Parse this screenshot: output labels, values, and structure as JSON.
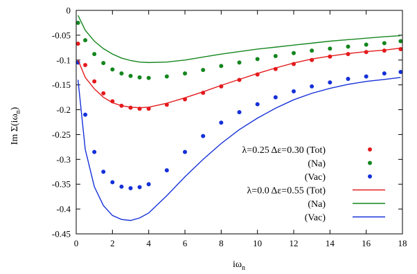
{
  "chart_data": {
    "type": "line",
    "title": "",
    "xlabel": "iω",
    "xlabel_sub": "n",
    "ylabel": "Im Σ(iω",
    "ylabel_sub": "n",
    "ylabel_close": ")",
    "xlim": [
      0,
      18
    ],
    "ylim": [
      -0.45,
      0
    ],
    "xticks": [
      0,
      2,
      4,
      6,
      8,
      10,
      12,
      14,
      16,
      18
    ],
    "yticks": [
      0,
      -0.05,
      -0.1,
      -0.15,
      -0.2,
      -0.25,
      -0.3,
      -0.35,
      -0.4,
      -0.45
    ],
    "ytick_labels": [
      "0",
      "-0.05",
      "-0.1",
      "-0.15",
      "-0.2",
      "-0.25",
      "-0.3",
      "-0.35",
      "-0.4",
      "-0.45"
    ],
    "legend_position": "center-right",
    "x": [
      0.1,
      0.5,
      1,
      1.5,
      2,
      2.5,
      3,
      3.5,
      4,
      5,
      6,
      7,
      8,
      9,
      10,
      11,
      12,
      13,
      14,
      15,
      16,
      17,
      17.9
    ],
    "series": [
      {
        "name": "λ=0.25  Δε=0.30 (Tot)",
        "style": "points",
        "color": "#e41a1c",
        "values": [
          -0.067,
          -0.11,
          -0.143,
          -0.167,
          -0.183,
          -0.192,
          -0.196,
          -0.198,
          -0.198,
          -0.19,
          -0.179,
          -0.166,
          -0.153,
          -0.14,
          -0.129,
          -0.118,
          -0.108,
          -0.1,
          -0.093,
          -0.088,
          -0.084,
          -0.081,
          -0.078
        ]
      },
      {
        "name": "(Na)",
        "style": "points",
        "color": "#14861e",
        "values": [
          -0.025,
          -0.06,
          -0.088,
          -0.106,
          -0.119,
          -0.127,
          -0.132,
          -0.135,
          -0.136,
          -0.133,
          -0.127,
          -0.12,
          -0.112,
          -0.105,
          -0.098,
          -0.092,
          -0.086,
          -0.081,
          -0.077,
          -0.073,
          -0.069,
          -0.066,
          -0.062
        ]
      },
      {
        "name": "(Vac)",
        "style": "points",
        "color": "#1530d8",
        "values": [
          -0.105,
          -0.21,
          -0.285,
          -0.325,
          -0.346,
          -0.355,
          -0.358,
          -0.356,
          -0.35,
          -0.322,
          -0.285,
          -0.253,
          -0.226,
          -0.205,
          -0.189,
          -0.175,
          -0.163,
          -0.153,
          -0.145,
          -0.138,
          -0.133,
          -0.127,
          -0.124
        ]
      },
      {
        "name": "λ=0.0  Δε=0.55 (Tot)",
        "style": "line",
        "color": "#e41a1c",
        "values": [
          -0.1,
          -0.135,
          -0.158,
          -0.175,
          -0.186,
          -0.192,
          -0.195,
          -0.196,
          -0.195,
          -0.187,
          -0.176,
          -0.164,
          -0.151,
          -0.139,
          -0.127,
          -0.116,
          -0.106,
          -0.098,
          -0.092,
          -0.087,
          -0.083,
          -0.08,
          -0.076
        ]
      },
      {
        "name": "(Na)",
        "style": "line",
        "color": "#14861e",
        "values": [
          -0.01,
          -0.04,
          -0.062,
          -0.077,
          -0.088,
          -0.096,
          -0.101,
          -0.104,
          -0.105,
          -0.104,
          -0.1,
          -0.094,
          -0.088,
          -0.083,
          -0.078,
          -0.074,
          -0.07,
          -0.066,
          -0.062,
          -0.059,
          -0.056,
          -0.053,
          -0.051
        ]
      },
      {
        "name": "(Vac)",
        "style": "line",
        "color": "#1530d8",
        "values": [
          -0.14,
          -0.28,
          -0.355,
          -0.393,
          -0.413,
          -0.421,
          -0.423,
          -0.418,
          -0.408,
          -0.373,
          -0.335,
          -0.3,
          -0.268,
          -0.24,
          -0.217,
          -0.197,
          -0.18,
          -0.167,
          -0.157,
          -0.149,
          -0.143,
          -0.139,
          -0.135
        ]
      }
    ]
  }
}
